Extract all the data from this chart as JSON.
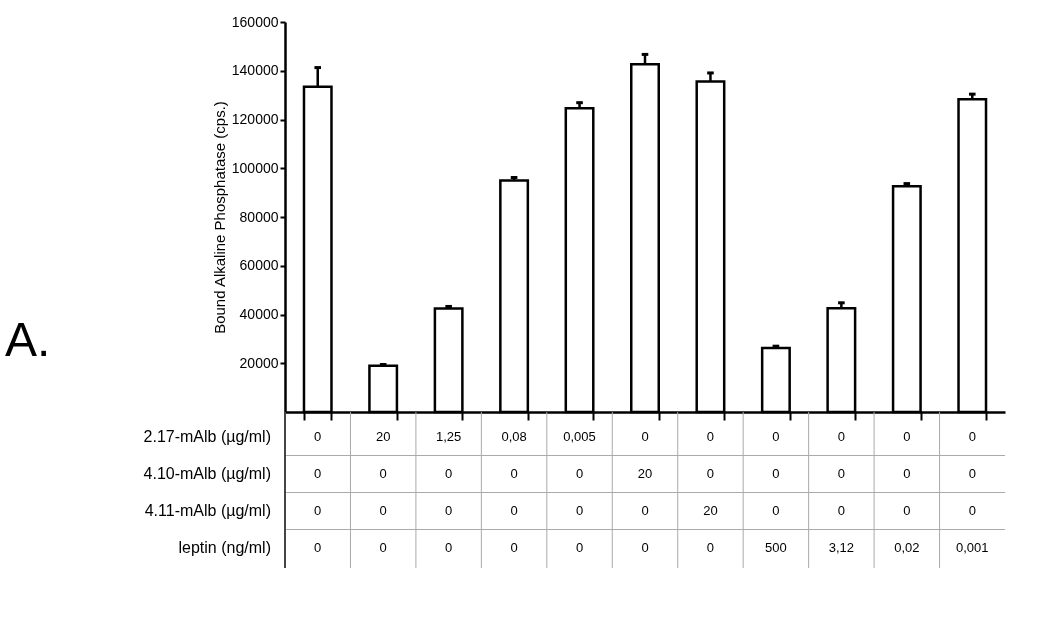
{
  "chart_data": {
    "type": "bar",
    "ylabel": "Bound Alkaline Phosphatase (cps.)",
    "categories": [
      null,
      null,
      null,
      null,
      null,
      null,
      null,
      null,
      null,
      null,
      null
    ],
    "values": [
      133400,
      19000,
      42500,
      95000,
      124600,
      142700,
      135600,
      26300,
      42600,
      92600,
      128300
    ],
    "errors": [
      7900,
      500,
      800,
      1200,
      2300,
      4000,
      3500,
      700,
      2200,
      1100,
      2100
    ],
    "color": "#ffffff",
    "ylim": [
      0,
      160000
    ],
    "yticks": [
      20000,
      40000,
      60000,
      80000,
      100000,
      120000,
      140000,
      160000
    ],
    "tick_labels": "y",
    "grid": false,
    "annotations": [
      "A.",
      "2.17-mAlb (µg/ml)",
      "0",
      "20",
      "1,25",
      "0,08",
      "0,005",
      "0",
      "0",
      "0",
      "0",
      "0",
      "0",
      "4.10-mAlb (µg/ml)",
      "0",
      "0",
      "0",
      "0",
      "0",
      "20",
      "0",
      "0",
      "0",
      "0",
      "0",
      "4.11-mAlb (µg/ml)",
      "0",
      "0",
      "0",
      "0",
      "0",
      "0",
      "20",
      "0",
      "0",
      "0",
      "0",
      "leptin (ng/ml)",
      "0",
      "0",
      "0",
      "0",
      "0",
      "0",
      "0",
      "500",
      "3,12",
      "0,02",
      "0,001"
    ]
  }
}
